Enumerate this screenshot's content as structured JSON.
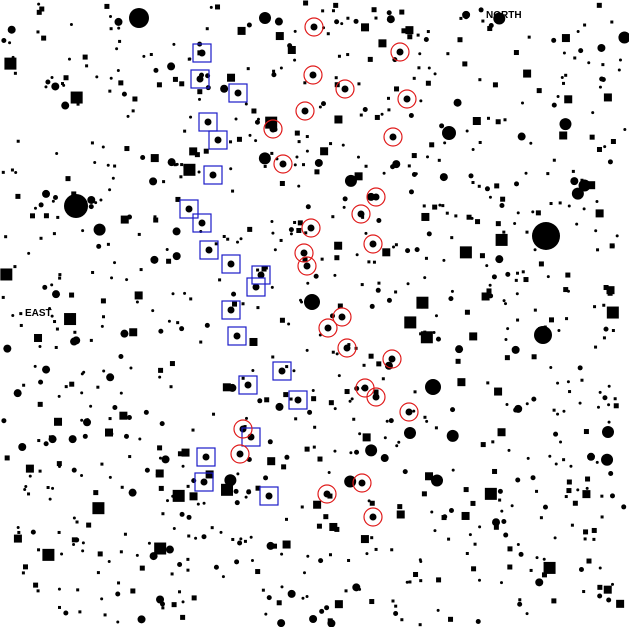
{
  "labels": {
    "north": "NORTH",
    "east": "EAST"
  }
}
